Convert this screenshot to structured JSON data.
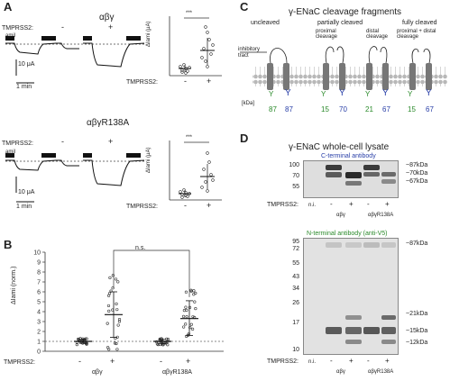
{
  "panelA": {
    "label": "A",
    "row1": {
      "title": "αβγ",
      "amil": "amil",
      "tmprss2": "TMPRSS2:",
      "minus": "-",
      "plus": "+",
      "scale_current": "10 μA",
      "scale_time": "1 min",
      "dot_ylabel": "ΔIami (μA)",
      "sig": "***",
      "yticks": [
        "0",
        "10",
        "20",
        "30",
        "40"
      ],
      "xticks": [
        "-",
        "+"
      ],
      "xlabel": "TMPRSS2:"
    },
    "row2": {
      "title": "αβγR138A",
      "amil": "amil",
      "tmprss2": "TMPRSS2:",
      "minus": "-",
      "plus": "+",
      "scale_current": "10 μA",
      "scale_time": "1 min",
      "dot_ylabel": "ΔIami (μA)",
      "sig": "***",
      "yticks": [
        "0",
        "10",
        "20",
        "30",
        "40"
      ],
      "xticks": [
        "-",
        "+"
      ],
      "xlabel": "TMPRSS2:"
    }
  },
  "panelB": {
    "label": "B",
    "ylabel": "ΔIami (norm.)",
    "yticks": [
      "0",
      "1",
      "2",
      "3",
      "4",
      "5",
      "6",
      "7",
      "8",
      "9",
      "10"
    ],
    "sig": "n.s.",
    "xlabel": "TMPRSS2:",
    "group_labels": [
      "αβγ",
      "αβγR138A"
    ],
    "xticks": [
      "-",
      "+",
      "-",
      "+"
    ],
    "chart_data": {
      "type": "scatter",
      "ylabel": "ΔIami (norm.)",
      "ylim": [
        0,
        10
      ],
      "categories": [
        "αβγ -",
        "αβγ +",
        "αβγR138A -",
        "αβγR138A +"
      ],
      "means": [
        1.0,
        3.7,
        1.0,
        3.3
      ],
      "sd_low": [
        0.8,
        1.4,
        0.8,
        1.6
      ],
      "sd_high": [
        1.2,
        6.0,
        1.2,
        5.1
      ]
    }
  },
  "panelC": {
    "label": "C",
    "title": "γ-ENaC cleavage fragments",
    "states": [
      "uncleaved",
      "partially cleaved",
      "partially cleaved",
      "fully cleaved"
    ],
    "state_notes": [
      "",
      "proximal cleavage",
      "distal cleavage",
      "proximal + distal cleavage"
    ],
    "inhib_label": "inhibitory tract",
    "kda_label": "[kDa]",
    "fragments": [
      "87",
      "87",
      "15",
      "70",
      "21",
      "67",
      "15",
      "67"
    ],
    "terminal_tags": [
      "N-V5",
      "C-HA"
    ]
  },
  "panelD": {
    "label": "D",
    "title": "γ-ENaC whole-cell lysate",
    "blot1": {
      "antibody": "C-terminal antibody",
      "mw": [
        "100",
        "70",
        "55"
      ],
      "right_labels": [
        "~87kDa",
        "~70kDa",
        "~67kDa"
      ],
      "tmprss2": "TMPRSS2:",
      "lanes": [
        "n.i.",
        "-",
        "+",
        "-",
        "+"
      ],
      "groups": [
        "αβγ",
        "αβγR138A"
      ]
    },
    "blot2": {
      "antibody": "N-terminal antibody (anti-V5)",
      "mw": [
        "95",
        "72",
        "55",
        "43",
        "34",
        "26",
        "17",
        "10"
      ],
      "right_labels": [
        "~87kDa",
        "~21kDa",
        "~15kDa",
        "~12kDa"
      ],
      "tmprss2": "TMPRSS2:",
      "lanes": [
        "n.i.",
        "-",
        "+",
        "-",
        "+"
      ],
      "groups": [
        "αβγ",
        "αβγR138A"
      ]
    }
  }
}
